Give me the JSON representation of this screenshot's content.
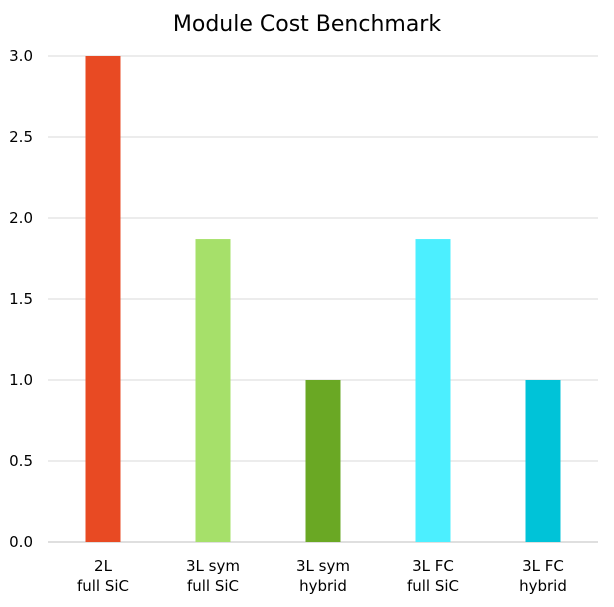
{
  "chart_data": {
    "type": "bar",
    "title": "Module Cost Benchmark",
    "xlabel": "",
    "ylabel": "",
    "categories": [
      [
        "2L",
        "full SiC"
      ],
      [
        "3L sym",
        "full SiC"
      ],
      [
        "3L sym",
        "hybrid"
      ],
      [
        "3L FC",
        "full SiC"
      ],
      [
        "3L FC",
        "hybrid"
      ]
    ],
    "values": [
      3.0,
      1.87,
      1.0,
      1.87,
      1.0
    ],
    "colors": [
      "#e84a23",
      "#a6e06a",
      "#6aa824",
      "#4cefff",
      "#00c3d8"
    ],
    "ylim": [
      0,
      3.0
    ],
    "yticks": [
      "0.0",
      "0.5",
      "1.0",
      "1.5",
      "2.0",
      "2.5",
      "3.0"
    ],
    "grid": true,
    "legend": "none"
  }
}
